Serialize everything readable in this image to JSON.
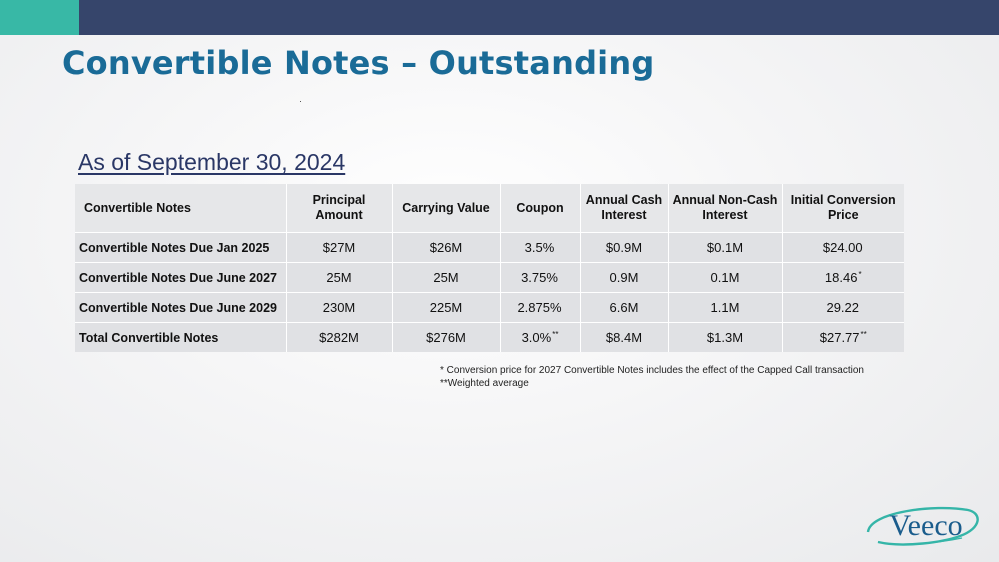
{
  "slide": {
    "title": "Convertible Notes – Outstanding",
    "subtitle": "As of September 30, 2024"
  },
  "table": {
    "headers": [
      "Convertible Notes",
      "Principal Amount",
      "Carrying Value",
      "Coupon",
      "Annual Cash Interest",
      "Annual Non-Cash Interest",
      "Initial Conversion Price"
    ],
    "rows": [
      {
        "name": "Convertible Notes Due Jan 2025",
        "principal": "$27M",
        "carrying": "$26M",
        "coupon": "3.5%",
        "coupon_mark": "",
        "cash": "$0.9M",
        "noncash": "$0.1M",
        "price": "$24.00",
        "price_mark": ""
      },
      {
        "name": "Convertible Notes Due June 2027",
        "principal": "25M",
        "carrying": "25M",
        "coupon": "3.75%",
        "coupon_mark": "",
        "cash": "0.9M",
        "noncash": "0.1M",
        "price": "18.46",
        "price_mark": "*"
      },
      {
        "name": "Convertible Notes Due June 2029",
        "principal": "230M",
        "carrying": "225M",
        "coupon": "2.875%",
        "coupon_mark": "",
        "cash": "6.6M",
        "noncash": "1.1M",
        "price": "29.22",
        "price_mark": ""
      },
      {
        "name": "Total Convertible Notes",
        "principal": "$282M",
        "carrying": "$276M",
        "coupon": "3.0%",
        "coupon_mark": "**",
        "cash": "$8.4M",
        "noncash": "$1.3M",
        "price": "$27.77",
        "price_mark": "**"
      }
    ]
  },
  "footnotes": [
    "*  Conversion price for 2027 Convertible Notes includes the effect of the Capped Call transaction",
    "**Weighted average"
  ],
  "logo": {
    "text": "Veeco",
    "color": "#1a5c8c",
    "swoosh_color": "#35b5a8"
  },
  "colors": {
    "top_bar": "#36456b",
    "accent": "#38b8a6",
    "title": "#1a6b97",
    "subtitle": "#2a3766",
    "header_row": "#e6e7e9",
    "data_row": "#e0e1e4"
  }
}
